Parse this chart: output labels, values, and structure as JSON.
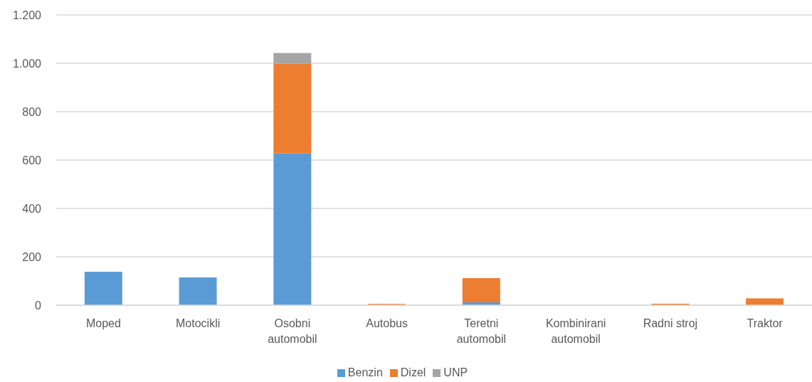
{
  "chart_data": {
    "type": "bar",
    "stacked": true,
    "categories": [
      "Moped",
      "Motocikli",
      "Osobni automobil",
      "Autobus",
      "Teretni automobil",
      "Kombinirani automobil",
      "Radni stroj",
      "Traktor"
    ],
    "series": [
      {
        "name": "Benzin",
        "color": "#5b9bd5",
        "values": [
          138,
          115,
          627,
          0,
          12,
          0,
          0,
          0
        ]
      },
      {
        "name": "Dizel",
        "color": "#ed7d31",
        "values": [
          0,
          0,
          371,
          5,
          100,
          0,
          6,
          28
        ]
      },
      {
        "name": "UNP",
        "color": "#a5a5a5",
        "values": [
          0,
          0,
          45,
          0,
          0,
          0,
          0,
          0
        ]
      }
    ],
    "ylim": [
      0,
      1200
    ],
    "yticks": [
      0,
      200,
      400,
      600,
      800,
      {
        "value": 1000,
        "label": "1.000"
      },
      {
        "value": 1200,
        "label": "1.200"
      }
    ],
    "grid": "y",
    "legend": "bottom"
  }
}
